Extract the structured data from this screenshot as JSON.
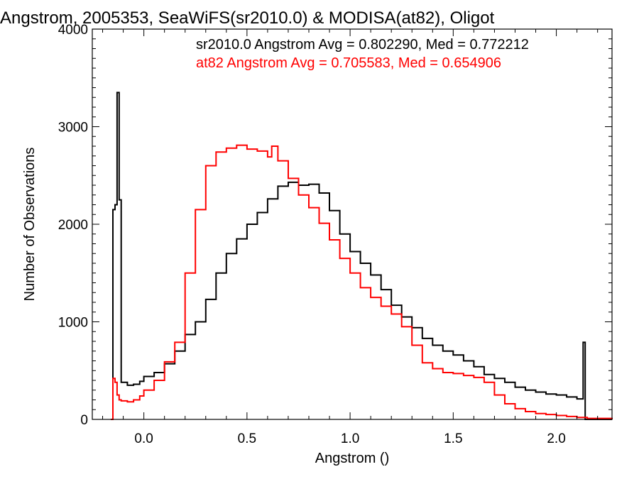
{
  "chart_data": {
    "type": "line",
    "title": "Angstrom, 2005353, SeaWiFS(sr2010.0) & MODISA(at82), Oligot",
    "xlabel": "Angstrom ()",
    "ylabel": "Number of Observations",
    "xlim": [
      -0.25,
      2.27
    ],
    "ylim": [
      0,
      4000
    ],
    "xticks": [
      0.0,
      0.5,
      1.0,
      1.5,
      2.0
    ],
    "xtick_labels": [
      "0.0",
      "0.5",
      "1.0",
      "1.5",
      "2.0"
    ],
    "yticks": [
      0,
      1000,
      2000,
      3000,
      4000
    ],
    "ytick_labels": [
      "0",
      "1000",
      "2000",
      "3000",
      "4000"
    ],
    "annotations": [
      {
        "text": "sr2010.0 Angstrom Avg = 0.802290, Med = 0.772212",
        "color": "#000000"
      },
      {
        "text": "at82 Angstrom Avg = 0.705583, Med = 0.654906",
        "color": "#ff0000"
      }
    ],
    "grid": false,
    "series": [
      {
        "color": "#000000",
        "x": [
          -0.16,
          -0.15,
          -0.14,
          -0.13,
          -0.12,
          -0.11,
          -0.08,
          -0.05,
          -0.02,
          0.0,
          0.05,
          0.1,
          0.15,
          0.2,
          0.25,
          0.3,
          0.35,
          0.4,
          0.45,
          0.5,
          0.55,
          0.6,
          0.65,
          0.7,
          0.75,
          0.8,
          0.85,
          0.9,
          0.95,
          1.0,
          1.05,
          1.1,
          1.15,
          1.2,
          1.25,
          1.3,
          1.35,
          1.4,
          1.45,
          1.5,
          1.55,
          1.6,
          1.65,
          1.7,
          1.75,
          1.8,
          1.85,
          1.9,
          1.95,
          2.0,
          2.05,
          2.1,
          2.13,
          2.14,
          2.15,
          2.16,
          2.27
        ],
        "y": [
          0,
          2150,
          2200,
          3350,
          2250,
          380,
          350,
          360,
          390,
          440,
          480,
          570,
          700,
          870,
          1000,
          1230,
          1500,
          1700,
          1850,
          2000,
          2120,
          2260,
          2390,
          2430,
          2400,
          2410,
          2320,
          2140,
          1900,
          1720,
          1600,
          1480,
          1330,
          1170,
          1050,
          940,
          830,
          760,
          700,
          660,
          600,
          540,
          460,
          420,
          380,
          330,
          300,
          280,
          260,
          250,
          230,
          210,
          790,
          0,
          0,
          0,
          0
        ]
      },
      {
        "color": "#ff0000",
        "x": [
          -0.16,
          -0.15,
          -0.14,
          -0.13,
          -0.12,
          -0.11,
          -0.08,
          -0.05,
          -0.02,
          0.0,
          0.05,
          0.1,
          0.15,
          0.2,
          0.25,
          0.3,
          0.35,
          0.4,
          0.45,
          0.5,
          0.55,
          0.6,
          0.62,
          0.65,
          0.7,
          0.75,
          0.8,
          0.85,
          0.9,
          0.95,
          1.0,
          1.05,
          1.1,
          1.15,
          1.2,
          1.25,
          1.3,
          1.35,
          1.4,
          1.45,
          1.5,
          1.55,
          1.6,
          1.65,
          1.7,
          1.75,
          1.8,
          1.85,
          1.9,
          1.95,
          2.0,
          2.05,
          2.1,
          2.15,
          2.27
        ],
        "y": [
          0,
          420,
          380,
          250,
          200,
          190,
          180,
          200,
          240,
          300,
          400,
          590,
          790,
          1500,
          2150,
          2600,
          2740,
          2780,
          2810,
          2770,
          2750,
          2690,
          2800,
          2650,
          2470,
          2300,
          2170,
          2010,
          1840,
          1650,
          1500,
          1350,
          1250,
          1160,
          1080,
          950,
          760,
          580,
          520,
          480,
          470,
          450,
          430,
          380,
          250,
          160,
          110,
          80,
          60,
          50,
          40,
          30,
          20,
          10,
          0
        ]
      }
    ]
  }
}
